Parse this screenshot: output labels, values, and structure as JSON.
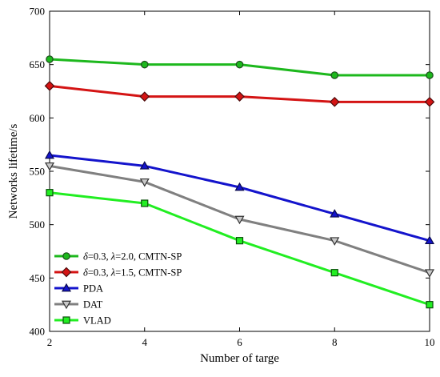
{
  "chart_data": {
    "type": "line",
    "title": "",
    "xlabel": "Number of targe",
    "ylabel": "Networks lifetime/s",
    "x": [
      2,
      4,
      6,
      8,
      10
    ],
    "xlim": [
      2,
      10
    ],
    "ylim": [
      400,
      700
    ],
    "xticks": [
      2,
      4,
      6,
      8,
      10
    ],
    "yticks": [
      400,
      450,
      500,
      550,
      600,
      650,
      700
    ],
    "grid": false,
    "legend_position": "bottom-left",
    "series": [
      {
        "name": "δ=0.3, λ=2.0, CMTN-SP",
        "values": [
          655,
          650,
          650,
          640,
          640
        ],
        "color": "#1db81d",
        "marker": "circle",
        "marker_fill": "#1db81d"
      },
      {
        "name": "δ=0.3, λ=1.5, CMTN-SP",
        "values": [
          630,
          620,
          620,
          615,
          615
        ],
        "color": "#d41414",
        "marker": "diamond",
        "marker_fill": "#d41414"
      },
      {
        "name": "PDA",
        "values": [
          565,
          555,
          535,
          510,
          485
        ],
        "color": "#1414cc",
        "marker": "triangle-up",
        "marker_fill": "#1414cc"
      },
      {
        "name": "DAT",
        "values": [
          555,
          540,
          505,
          485,
          455
        ],
        "color": "#808080",
        "marker": "triangle-down",
        "marker_fill": "#c8c8c8"
      },
      {
        "name": "VLAD",
        "values": [
          530,
          520,
          485,
          455,
          425
        ],
        "color": "#22ee22",
        "marker": "square",
        "marker_fill": "#22ee22"
      }
    ],
    "legend_labels": [
      {
        "parts": [
          {
            "t": "δ",
            "i": true
          },
          {
            "t": "=0.3, ",
            "i": false
          },
          {
            "t": "λ",
            "i": true
          },
          {
            "t": "=2.0, CMTN-SP",
            "i": false
          }
        ]
      },
      {
        "parts": [
          {
            "t": "δ",
            "i": true
          },
          {
            "t": "=0.3, ",
            "i": false
          },
          {
            "t": "λ",
            "i": true
          },
          {
            "t": "=1.5, CMTN-SP",
            "i": false
          }
        ]
      },
      {
        "parts": [
          {
            "t": "PDA",
            "i": false
          }
        ]
      },
      {
        "parts": [
          {
            "t": "DAT",
            "i": false
          }
        ]
      },
      {
        "parts": [
          {
            "t": "VLAD",
            "i": false
          }
        ]
      }
    ]
  }
}
